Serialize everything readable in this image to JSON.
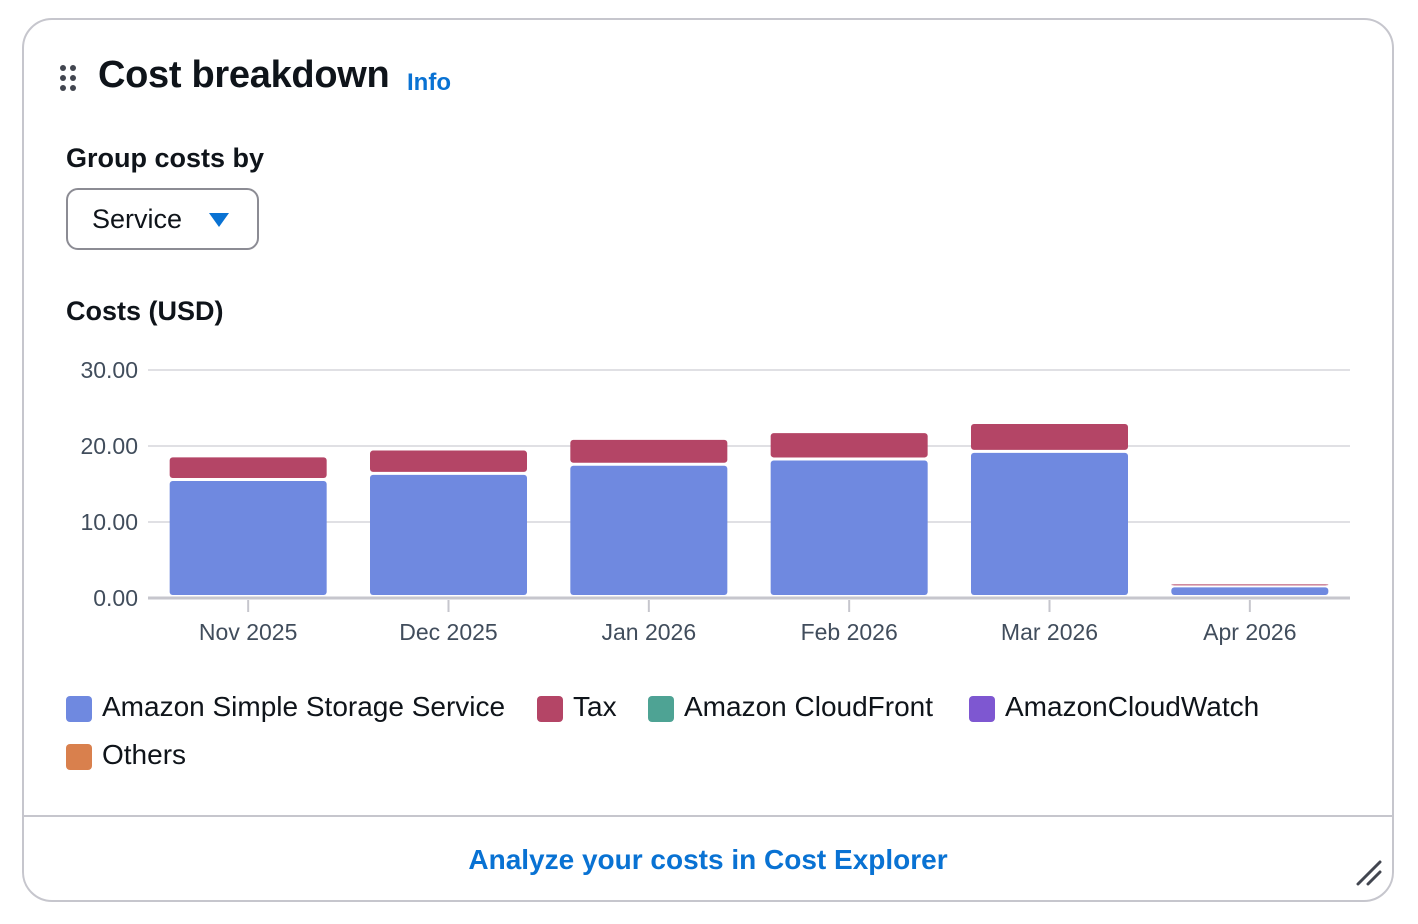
{
  "widget": {
    "title": "Cost breakdown",
    "info_label": "Info",
    "group_by_label": "Group costs by",
    "group_by_value": "Service",
    "costs_label": "Costs (USD)",
    "footer_link": "Analyze your costs in Cost Explorer"
  },
  "legend": [
    {
      "label": "Amazon Simple Storage Service",
      "color": "#6f89e0"
    },
    {
      "label": "Tax",
      "color": "#b44566"
    },
    {
      "label": "Amazon CloudFront",
      "color": "#4ea394"
    },
    {
      "label": "AmazonCloudWatch",
      "color": "#7e57d1"
    },
    {
      "label": "Others",
      "color": "#d9804d"
    }
  ],
  "chart_data": {
    "type": "bar",
    "stacked": true,
    "categories": [
      "Nov 2025",
      "Dec 2025",
      "Jan 2026",
      "Feb 2026",
      "Mar 2026",
      "Apr 2026"
    ],
    "series": [
      {
        "name": "Amazon Simple Storage Service",
        "color": "#6f89e0",
        "values": [
          15.4,
          16.2,
          17.4,
          18.1,
          19.1,
          1.4
        ]
      },
      {
        "name": "Tax",
        "color": "#b44566",
        "values": [
          3.1,
          3.2,
          3.4,
          3.6,
          3.8,
          0.4
        ]
      }
    ],
    "yticks": [
      "0.00",
      "10.00",
      "20.00",
      "30.00"
    ],
    "ylim": [
      0,
      30
    ],
    "grid": true
  }
}
